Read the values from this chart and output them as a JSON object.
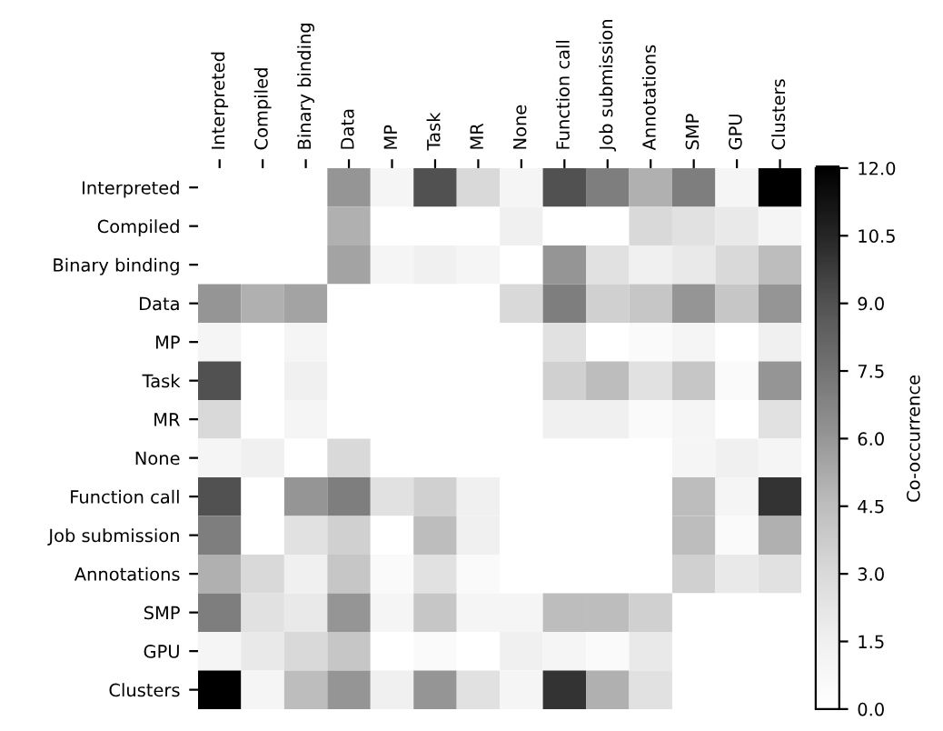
{
  "chart_data": {
    "type": "heatmap",
    "categories": [
      "Interpreted",
      "Compiled",
      "Binary binding",
      "Data",
      "MP",
      "Task",
      "MR",
      "None",
      "Function call",
      "Job submission",
      "Annotations",
      "SMP",
      "GPU",
      "Clusters"
    ],
    "y_categories": [
      "Interpreted",
      "Compiled",
      "Binary binding",
      "Data",
      "MP",
      "Task",
      "MR",
      "None",
      "Function call",
      "Job submission",
      "Annotations",
      "SMP",
      "GPU",
      "Clusters"
    ],
    "cells": [
      [
        0,
        0,
        0,
        6,
        1,
        9,
        3,
        1,
        9,
        7,
        5,
        7,
        1,
        12
      ],
      [
        0,
        0,
        0,
        5,
        0,
        0,
        0,
        1.5,
        0,
        0,
        3,
        2.5,
        2,
        1
      ],
      [
        0,
        0,
        0,
        5.5,
        1,
        1.5,
        1,
        0,
        6,
        2.5,
        1.5,
        2,
        3,
        4.5
      ],
      [
        6,
        5,
        5.5,
        0,
        0,
        0,
        0,
        3,
        7,
        3.5,
        4,
        6,
        4,
        6
      ],
      [
        1,
        0,
        1,
        0,
        0,
        0,
        0,
        0,
        2.5,
        0,
        0.5,
        1,
        0,
        1.5
      ],
      [
        9,
        0,
        1.5,
        0,
        0,
        0,
        0,
        0,
        3.5,
        4.5,
        2.5,
        4,
        0.5,
        6
      ],
      [
        3,
        0,
        1,
        0,
        0,
        0,
        0,
        0,
        1.5,
        1.5,
        0.5,
        1,
        0,
        2.5
      ],
      [
        1,
        1.5,
        0,
        3,
        0,
        0,
        0,
        0,
        0,
        0,
        0,
        1,
        1.5,
        1
      ],
      [
        9,
        0,
        6,
        7,
        2.5,
        3.5,
        1.5,
        0,
        0,
        0,
        0,
        4.5,
        1,
        10
      ],
      [
        7,
        0,
        2.5,
        3.5,
        0,
        4.5,
        1.5,
        0,
        0,
        0,
        0,
        4.5,
        0.5,
        5
      ],
      [
        5,
        3,
        1.5,
        4,
        0.5,
        2.5,
        0.5,
        0,
        0,
        0,
        0,
        3.5,
        2,
        2.5
      ],
      [
        7,
        2.5,
        2,
        6,
        1,
        4,
        1,
        1,
        4.5,
        4.5,
        3.5,
        0,
        0,
        0
      ],
      [
        1,
        2,
        3,
        4,
        0,
        0.5,
        0,
        1.5,
        1,
        0.5,
        2,
        0,
        0,
        0
      ],
      [
        12,
        1,
        4.5,
        6,
        1.5,
        6,
        2.5,
        1,
        10,
        5,
        2.5,
        0,
        0,
        0
      ]
    ],
    "clim": [
      0,
      12
    ],
    "cticks": [
      {
        "value": 0,
        "label": "0.0"
      },
      {
        "value": 1.5,
        "label": "1.5"
      },
      {
        "value": 3,
        "label": "3.0"
      },
      {
        "value": 4.5,
        "label": "4.5"
      },
      {
        "value": 6,
        "label": "6.0"
      },
      {
        "value": 7.5,
        "label": "7.5"
      },
      {
        "value": 9,
        "label": "9.0"
      },
      {
        "value": 10.5,
        "label": "10.5"
      },
      {
        "value": 12,
        "label": "12.0"
      }
    ],
    "clabel": "Co-occurrence"
  }
}
